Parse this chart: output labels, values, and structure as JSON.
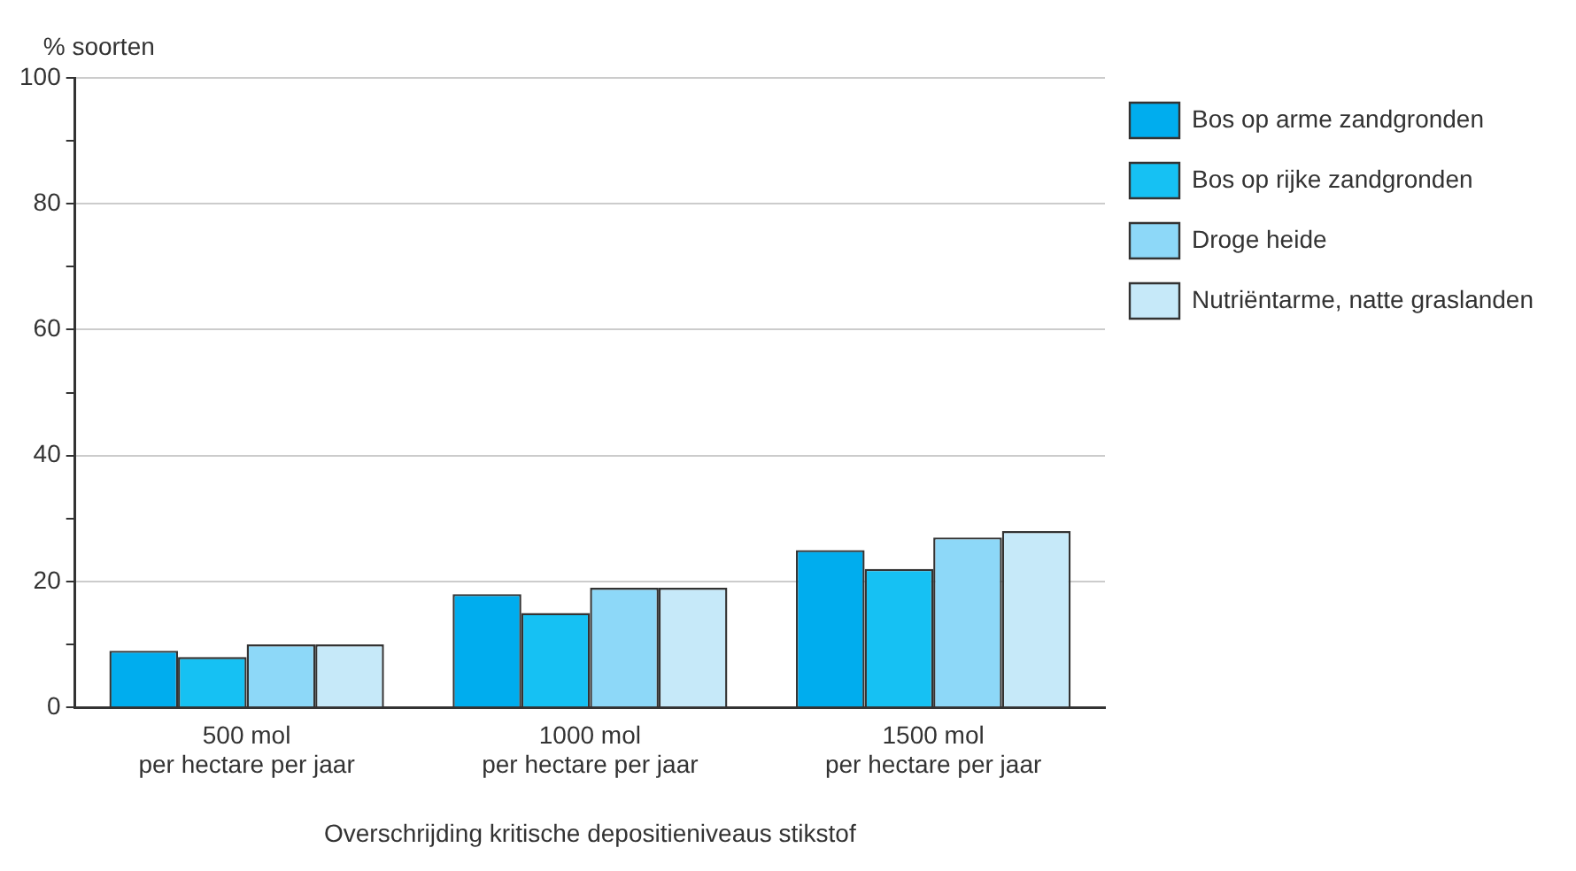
{
  "chart_data": {
    "type": "bar",
    "ylabel": "% soorten",
    "xlabel": "Overschrijding kritische depositieniveaus stikstof",
    "categories": [
      "500 mol\nper hectare per jaar",
      "1000 mol\nper hectare per jaar",
      "1500 mol\nper hectare per jaar"
    ],
    "series": [
      {
        "name": "Bos op arme zandgronden",
        "color": "#00adee",
        "values": [
          9,
          18,
          25
        ]
      },
      {
        "name": "Bos op rijke zandgronden",
        "color": "#16c1f3",
        "values": [
          8,
          15,
          22
        ]
      },
      {
        "name": "Droge heide",
        "color": "#8dd8f8",
        "values": [
          10,
          19,
          27
        ]
      },
      {
        "name": "Nutriëntarme, natte graslanden",
        "color": "#c6e9f9",
        "values": [
          10,
          19,
          28
        ]
      }
    ],
    "ylim": [
      0,
      100
    ],
    "yticks": [
      0,
      {
        "value": 10,
        "label": null
      },
      20,
      {
        "value": 30,
        "label": null
      },
      40,
      {
        "value": 50,
        "label": null
      },
      60,
      {
        "value": 70,
        "label": null
      },
      80,
      {
        "value": 90,
        "label": null
      },
      100
    ],
    "grid": "y",
    "legend": "top right"
  }
}
